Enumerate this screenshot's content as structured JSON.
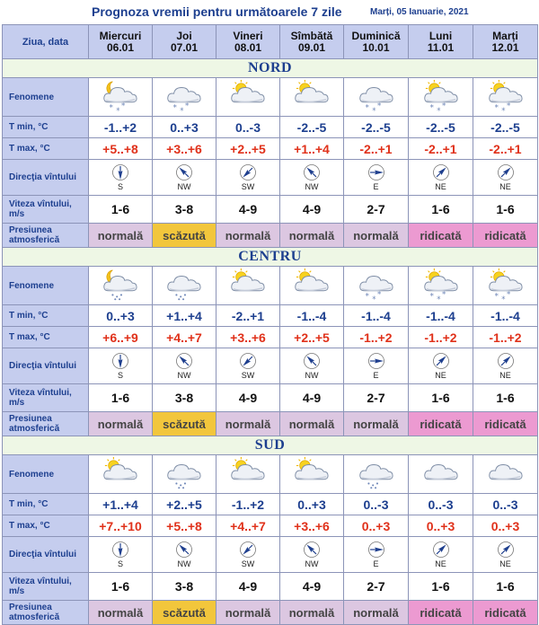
{
  "title": "Prognoza vremii pentru următoarele 7 zile",
  "date": "Marți, 05 Ianuarie, 2021",
  "header_label": "Ziua, data",
  "days": [
    {
      "name": "Miercuri",
      "date": "06.01"
    },
    {
      "name": "Joi",
      "date": "07.01"
    },
    {
      "name": "Vineri",
      "date": "08.01"
    },
    {
      "name": "Sîmbătă",
      "date": "09.01"
    },
    {
      "name": "Duminică",
      "date": "10.01"
    },
    {
      "name": "Luni",
      "date": "11.01"
    },
    {
      "name": "Marți",
      "date": "12.01"
    }
  ],
  "row_labels": {
    "fenomene": "Fenomene",
    "tmin": "T min, °C",
    "tmax": "T max, °C",
    "directia": "Direcţia vîntului",
    "viteza": "Viteza vîntului, m/s",
    "presiunea": "Presiunea atmosferică"
  },
  "regions": [
    {
      "name": "NORD",
      "icons": [
        "moon-cloud-snow-icon",
        "cloud-snow-icon",
        "sun-cloud-icon",
        "sun-cloud-icon",
        "cloud-snow-icon",
        "sun-cloud-snow-icon",
        "sun-cloud-snow-icon"
      ],
      "tmin": [
        "-1..+2",
        "0..+3",
        "0..-3",
        "-2..-5",
        "-2..-5",
        "-2..-5",
        "-2..-5"
      ],
      "tmax": [
        "+5..+8",
        "+3..+6",
        "+2..+5",
        "+1..+4",
        "-2..+1",
        "-2..+1",
        "-2..+1"
      ],
      "wind_dir": [
        "S",
        "NW",
        "SW",
        "NW",
        "E",
        "NE",
        "NE"
      ],
      "wind_speed": [
        "1-6",
        "3-8",
        "4-9",
        "4-9",
        "2-7",
        "1-6",
        "1-6"
      ],
      "pressure": [
        "normală",
        "scăzută",
        "normală",
        "normală",
        "normală",
        "ridicată",
        "ridicată"
      ]
    },
    {
      "name": "CENTRU",
      "icons": [
        "moon-cloud-rain-icon",
        "cloud-rain-icon",
        "sun-cloud-icon",
        "sun-cloud-icon",
        "cloud-snow-icon",
        "sun-cloud-snow-icon",
        "sun-cloud-snow-icon"
      ],
      "tmin": [
        "0..+3",
        "+1..+4",
        "-2..+1",
        "-1..-4",
        "-1..-4",
        "-1..-4",
        "-1..-4"
      ],
      "tmax": [
        "+6..+9",
        "+4..+7",
        "+3..+6",
        "+2..+5",
        "-1..+2",
        "-1..+2",
        "-1..+2"
      ],
      "wind_dir": [
        "S",
        "NW",
        "SW",
        "NW",
        "E",
        "NE",
        "NE"
      ],
      "wind_speed": [
        "1-6",
        "3-8",
        "4-9",
        "4-9",
        "2-7",
        "1-6",
        "1-6"
      ],
      "pressure": [
        "normală",
        "scăzută",
        "normală",
        "normală",
        "normală",
        "ridicată",
        "ridicată"
      ]
    },
    {
      "name": "SUD",
      "icons": [
        "sun-cloud-icon",
        "cloud-rain-icon",
        "sun-cloud-icon",
        "sun-cloud-icon",
        "cloud-rain-icon",
        "cloud-icon",
        "cloud-icon"
      ],
      "tmin": [
        "+1..+4",
        "+2..+5",
        "-1..+2",
        "0..+3",
        "0..-3",
        "0..-3",
        "0..-3"
      ],
      "tmax": [
        "+7..+10",
        "+5..+8",
        "+4..+7",
        "+3..+6",
        "0..+3",
        "0..+3",
        "0..+3"
      ],
      "wind_dir": [
        "S",
        "NW",
        "SW",
        "NW",
        "E",
        "NE",
        "NE"
      ],
      "wind_speed": [
        "1-6",
        "3-8",
        "4-9",
        "4-9",
        "2-7",
        "1-6",
        "1-6"
      ],
      "pressure": [
        "normală",
        "scăzută",
        "normală",
        "normală",
        "normală",
        "ridicată",
        "ridicată"
      ]
    }
  ]
}
